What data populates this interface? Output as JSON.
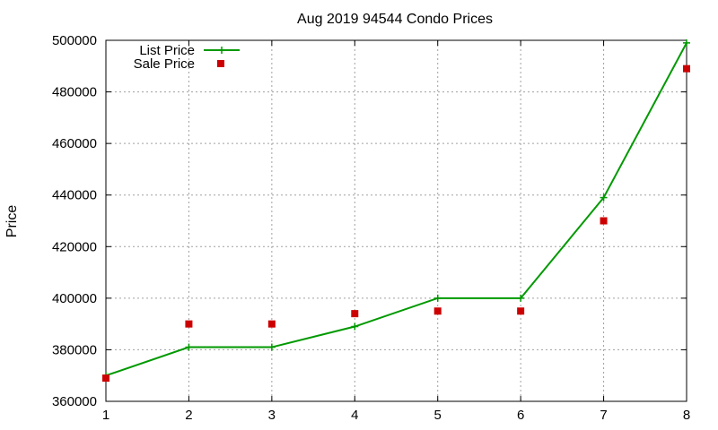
{
  "chart_data": {
    "type": "line",
    "title": "Aug 2019 94544 Condo Prices",
    "xlabel": "",
    "ylabel": "Price",
    "x": [
      1,
      2,
      3,
      4,
      5,
      6,
      7,
      8
    ],
    "xlim": [
      1,
      8
    ],
    "ylim": [
      360000,
      500000
    ],
    "xticks": [
      "1",
      "2",
      "3",
      "4",
      "5",
      "6",
      "7",
      "8"
    ],
    "yticks": [
      "360000",
      "380000",
      "400000",
      "420000",
      "440000",
      "460000",
      "480000",
      "500000"
    ],
    "grid": true,
    "legend_position": "top-left",
    "series": [
      {
        "name": "List Price",
        "style": "line-with-plus-markers",
        "color": "#009900",
        "values": [
          370000,
          381000,
          381000,
          389000,
          400000,
          400000,
          439000,
          499000
        ]
      },
      {
        "name": "Sale Price",
        "style": "square-markers",
        "color": "#cc0000",
        "values": [
          369000,
          390000,
          390000,
          394000,
          395000,
          395000,
          430000,
          489000
        ]
      }
    ]
  }
}
